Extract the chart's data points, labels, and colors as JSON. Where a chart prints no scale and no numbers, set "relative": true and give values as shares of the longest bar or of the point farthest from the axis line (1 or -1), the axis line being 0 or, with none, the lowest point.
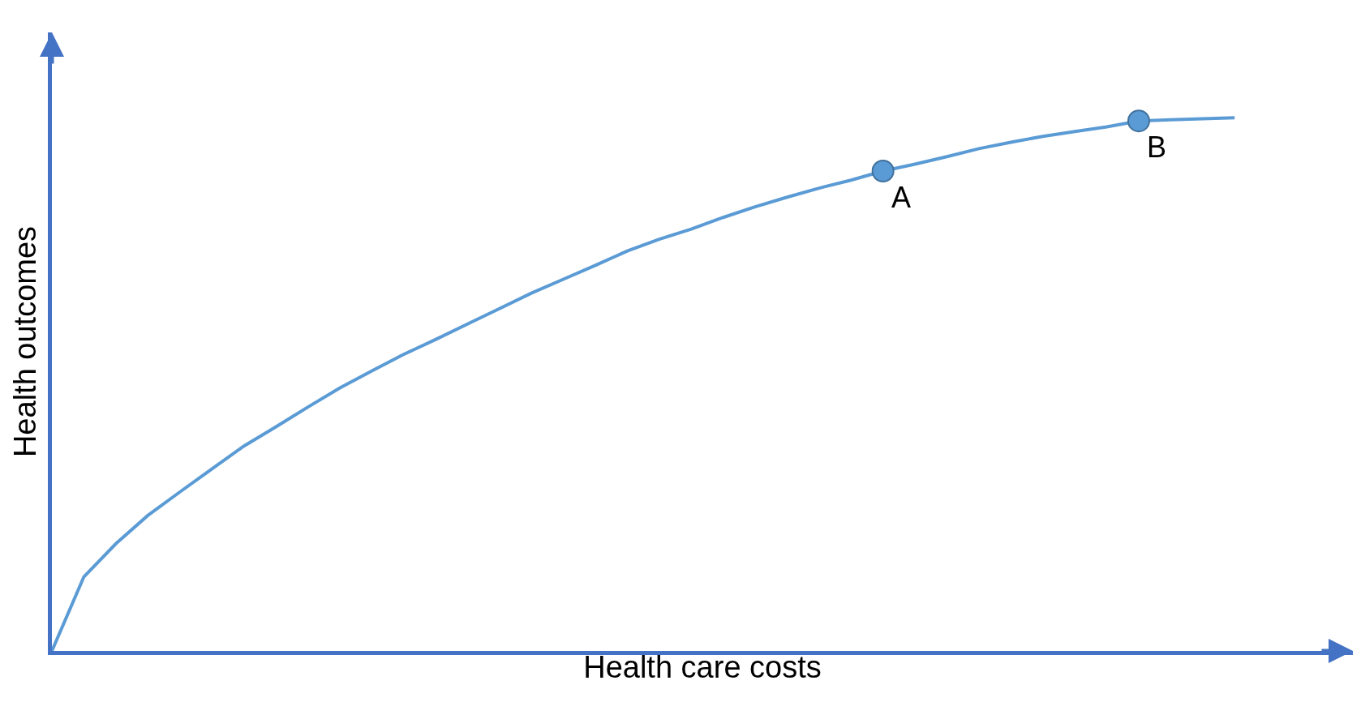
{
  "chart_data": {
    "type": "line",
    "relative": true,
    "xlabel": "Health care costs",
    "ylabel": "Health outcomes",
    "categories": [
      null,
      null,
      null,
      null,
      null,
      null,
      null,
      null,
      null,
      null,
      null,
      null,
      null,
      null,
      null,
      null,
      null,
      null,
      null,
      null,
      null,
      null,
      null,
      null,
      null,
      null,
      null,
      null,
      null,
      null,
      null,
      null,
      null,
      null,
      null,
      null,
      null,
      null
    ],
    "series": [
      {
        "color": "#5b9bd5",
        "values": [
          0,
          0.139,
          0.201,
          0.254,
          0.298,
          0.341,
          0.384,
          0.42,
          0.457,
          0.493,
          0.525,
          0.556,
          0.584,
          0.613,
          0.642,
          0.671,
          0.697,
          0.723,
          0.75,
          0.772,
          0.791,
          0.813,
          0.833,
          0.851,
          0.868,
          0.883,
          0.9,
          0.913,
          0.927,
          0.942,
          0.954,
          0.965,
          0.974,
          0.983,
          0.994,
          0.996,
          0.998,
          1.0
        ]
      }
    ],
    "annotations": [
      {
        "text": "A",
        "y": 0.9
      },
      {
        "text": "B",
        "y": 0.994
      }
    ]
  }
}
